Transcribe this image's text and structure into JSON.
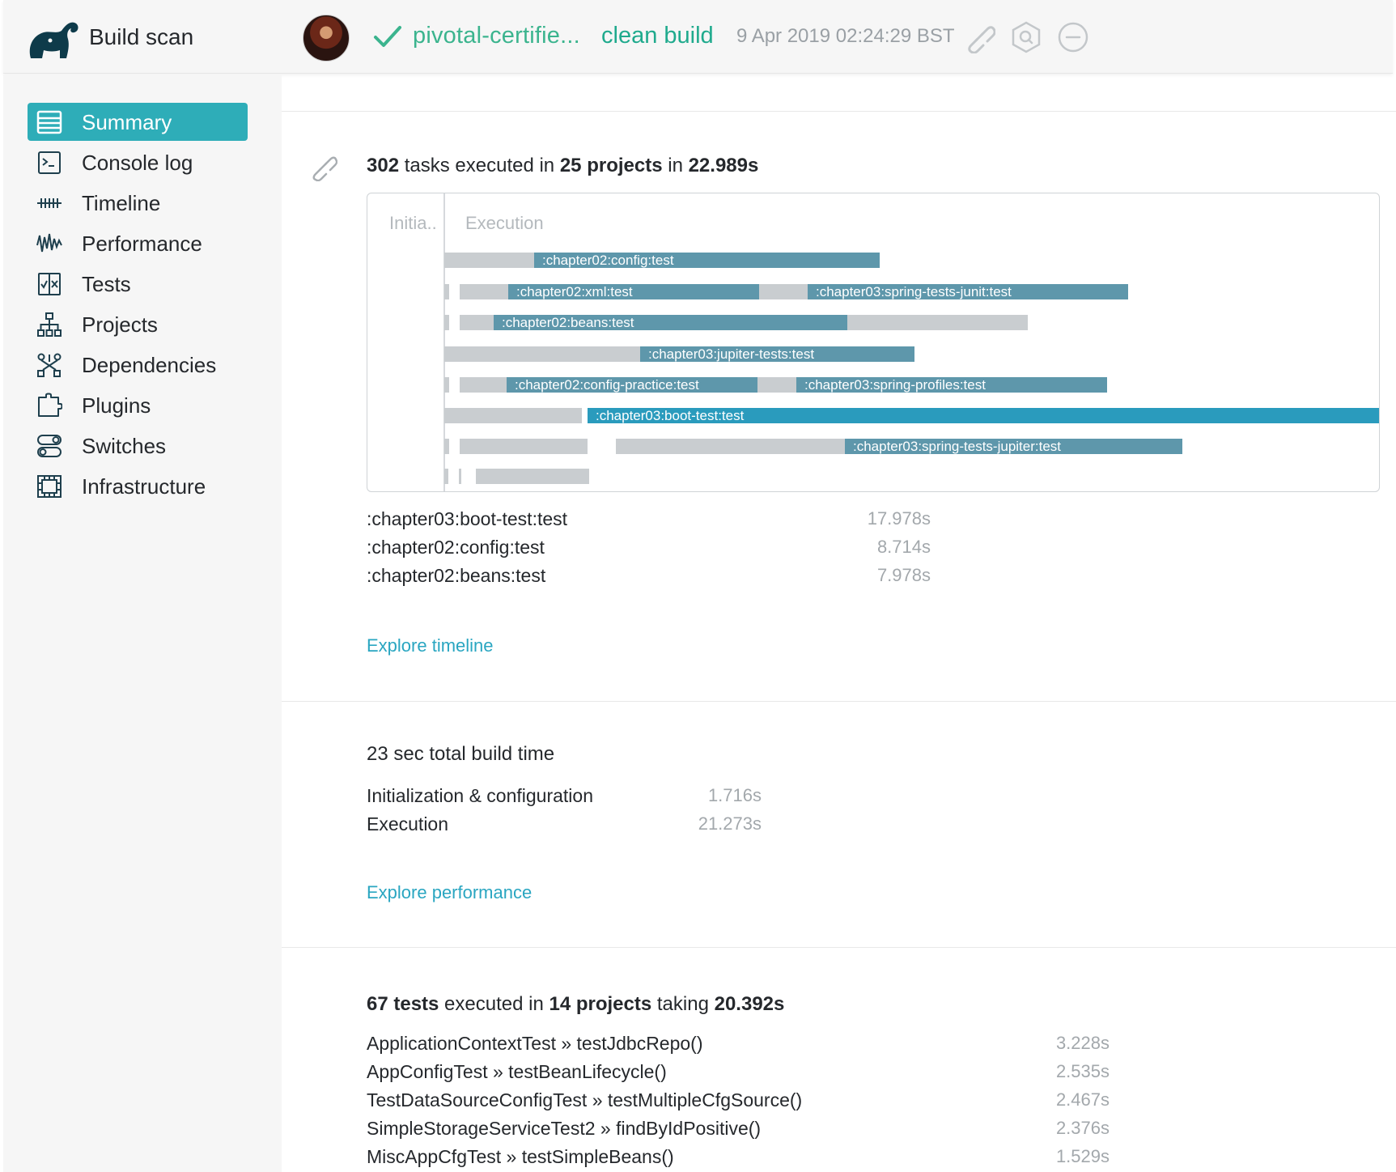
{
  "header": {
    "app_title": "Build scan",
    "project_name": "pivotal-certifie...",
    "build_tag": "clean build",
    "date": "9 Apr 2019 02:24:29 BST",
    "icons": [
      "elephant-logo-icon",
      "avatar",
      "check-icon",
      "link-icon",
      "search-hexagon-icon",
      "minus-circle-icon"
    ]
  },
  "sidebar": {
    "items": [
      {
        "label": "Summary",
        "icon": "summary-icon",
        "active": true
      },
      {
        "label": "Console log",
        "icon": "console-icon"
      },
      {
        "label": "Timeline",
        "icon": "timeline-icon"
      },
      {
        "label": "Performance",
        "icon": "performance-icon"
      },
      {
        "label": "Tests",
        "icon": "tests-icon"
      },
      {
        "label": "Projects",
        "icon": "projects-icon"
      },
      {
        "label": "Dependencies",
        "icon": "dependencies-icon"
      },
      {
        "label": "Plugins",
        "icon": "plugins-icon"
      },
      {
        "label": "Switches",
        "icon": "switches-icon"
      },
      {
        "label": "Infrastructure",
        "icon": "infrastructure-icon"
      }
    ]
  },
  "summary": {
    "tasks_count": "302",
    "tasks_text": " tasks executed in ",
    "projects_count": "25 projects",
    "in_text": " in ",
    "duration": "22.989s",
    "timeline": {
      "phase_init": "Initia..",
      "phase_exec": "Execution",
      "tasks": [
        ":chapter02:config:test",
        ":chapter02:xml:test",
        ":chapter03:spring-tests-junit:test",
        ":chapter02:beans:test",
        ":chapter03:jupiter-tests:test",
        ":chapter02:config-practice:test",
        ":chapter03:spring-profiles:test",
        ":chapter03:boot-test:test",
        ":chapter03:spring-tests-jupiter:test"
      ]
    },
    "slowest_tasks": [
      {
        "name": ":chapter03:boot-test:test",
        "time": "17.978s"
      },
      {
        "name": ":chapter02:config:test",
        "time": "8.714s"
      },
      {
        "name": ":chapter02:beans:test",
        "time": "7.978s"
      }
    ],
    "explore_timeline": "Explore timeline"
  },
  "build_time": {
    "heading": "23 sec total build time",
    "rows": [
      {
        "name": "Initialization & configuration",
        "time": "1.716s"
      },
      {
        "name": "Execution",
        "time": "21.273s"
      }
    ],
    "explore_performance": "Explore performance"
  },
  "tests": {
    "count": "67 tests",
    "executed_text": " executed in ",
    "projects": "14 projects",
    "taking_text": " taking ",
    "duration": "20.392s",
    "rows": [
      {
        "name": "ApplicationContextTest » testJdbcRepo()",
        "time": "3.228s"
      },
      {
        "name": "AppConfigTest » testBeanLifecycle()",
        "time": "2.535s"
      },
      {
        "name": "TestDataSourceConfigTest » testMultipleCfgSource()",
        "time": "2.467s"
      },
      {
        "name": "SimpleStorageServiceTest2 » findByIdPositive()",
        "time": "2.376s"
      },
      {
        "name": "MiscAppCfgTest » testSimpleBeans()",
        "time": "1.529s"
      }
    ]
  },
  "colors": {
    "accent": "#2eadb8",
    "success": "#3bb48e",
    "task_bar": "#5e97ab",
    "task_bar_highlight": "#2a9bbd",
    "link": "#2aa6c1"
  }
}
